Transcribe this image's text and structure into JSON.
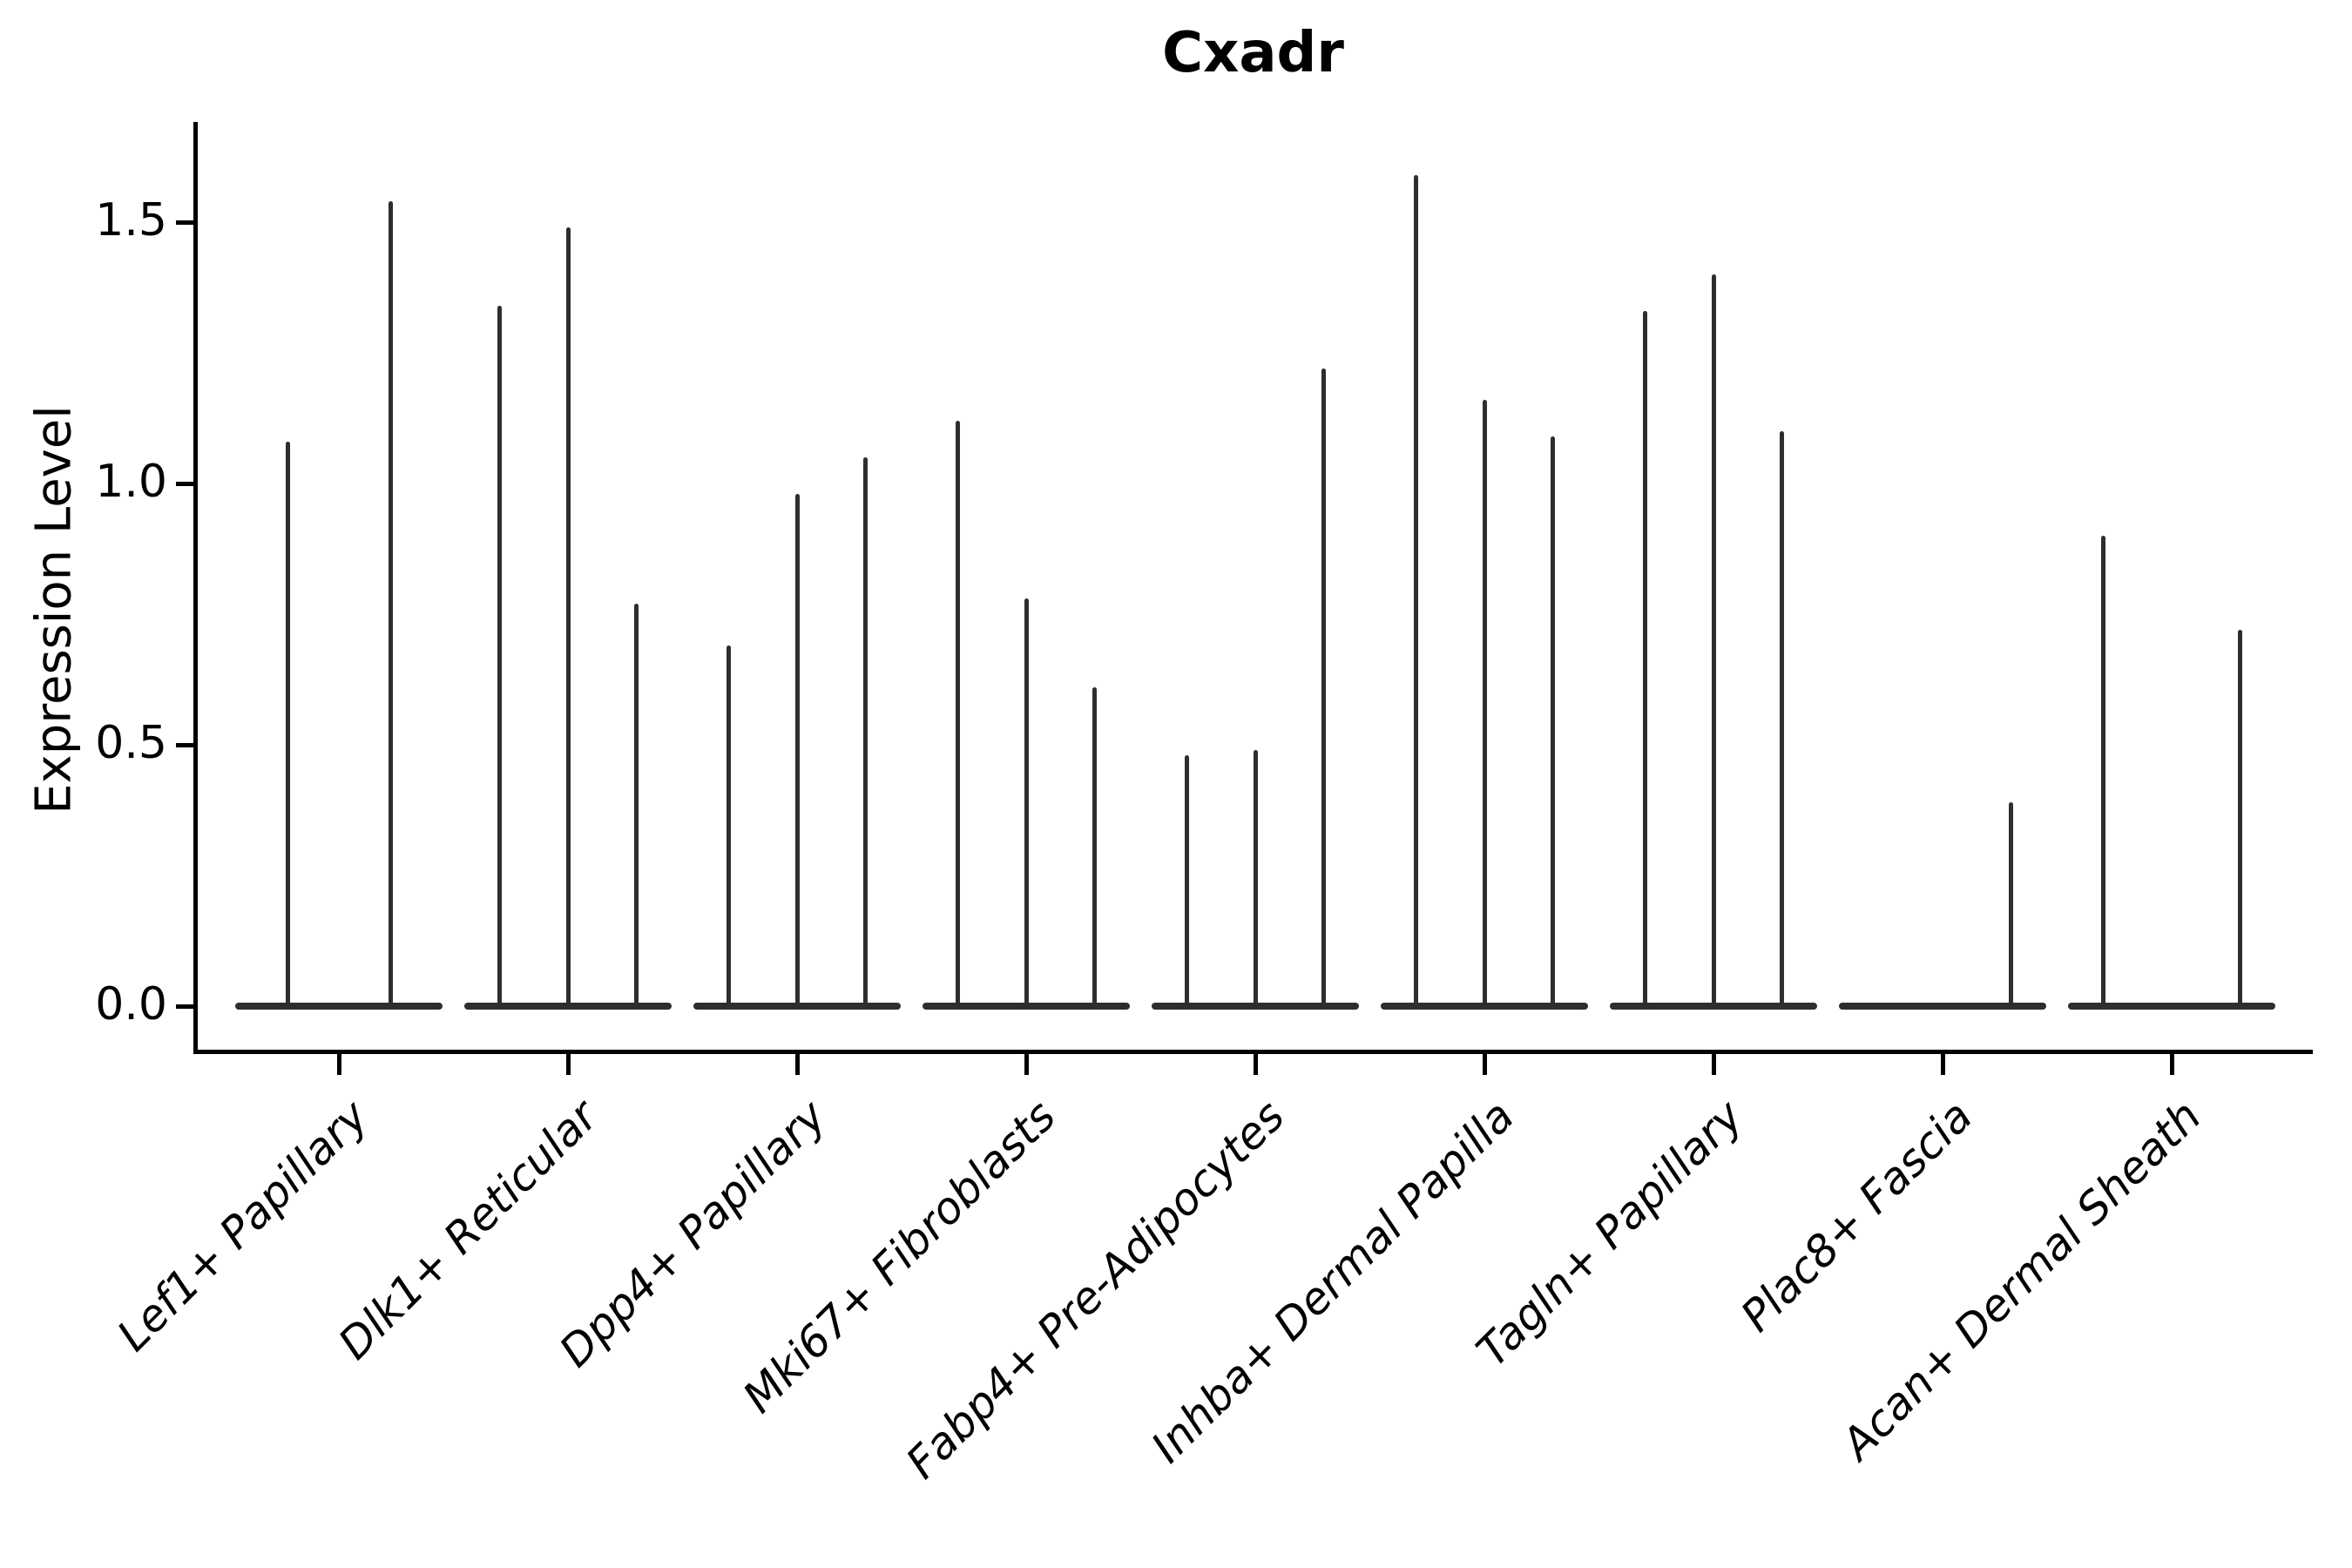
{
  "title": "Cxadr",
  "axes": {
    "ylabel": "Expression Level",
    "ytick_labels": [
      "0.0",
      "0.5",
      "1.0",
      "1.5"
    ],
    "ytick_values": [
      0.0,
      0.5,
      1.0,
      1.5
    ]
  },
  "colors": {
    "line": "#2e2e2e",
    "text": "#000000",
    "background": "#ffffff"
  },
  "chart_data": {
    "type": "bar",
    "subtype": "violin-plot-thin-spikes",
    "title": "Cxadr",
    "xlabel": "",
    "ylabel": "Expression Level",
    "ylim": [
      -0.09,
      1.69
    ],
    "yticks": [
      0.0,
      0.5,
      1.0,
      1.5
    ],
    "grid": false,
    "legend_position": "none",
    "categories": [
      "Lef1+ Papillary",
      "Dlk1+ Reticular",
      "Dpp4+ Papillary",
      "Mki67+ Fibroblasts",
      "Fabp4+ Pre-Adipocytes",
      "Inhba+ Dermal Papilla",
      "Tagln+ Papillary",
      "Plac8+ Fascia",
      "Acan+ Dermal Sheath"
    ],
    "groups": [
      {
        "label": "Lef1+ Papillary",
        "violin_maxima": [
          1.08,
          1.54
        ]
      },
      {
        "label": "Dlk1+ Reticular",
        "violin_maxima": [
          1.34,
          1.49,
          0.77
        ]
      },
      {
        "label": "Dpp4+ Papillary",
        "violin_maxima": [
          0.69,
          0.98,
          1.05
        ]
      },
      {
        "label": "Mki67+ Fibroblasts",
        "violin_maxima": [
          1.12,
          0.78,
          0.61
        ]
      },
      {
        "label": "Fabp4+ Pre-Adipocytes",
        "violin_maxima": [
          0.48,
          0.49,
          1.22
        ]
      },
      {
        "label": "Inhba+ Dermal Papilla",
        "violin_maxima": [
          1.59,
          1.16,
          1.09
        ]
      },
      {
        "label": "Tagln+ Papillary",
        "violin_maxima": [
          1.33,
          1.4,
          1.1
        ]
      },
      {
        "label": "Plac8+ Fascia",
        "violin_maxima": [
          0.0,
          0.0,
          0.39
        ]
      },
      {
        "label": "Acan+ Dermal Sheath",
        "violin_maxima": [
          0.9,
          0.0,
          0.72
        ]
      }
    ]
  }
}
